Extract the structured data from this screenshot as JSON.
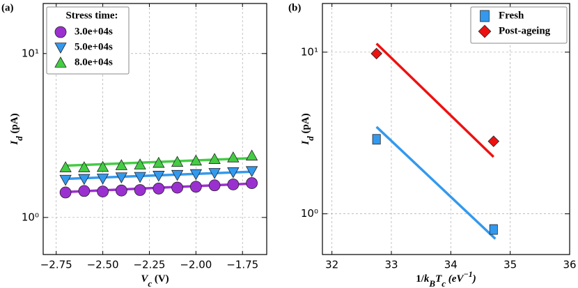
{
  "chart_data": [
    {
      "type": "scatter",
      "panel_label": "(a)",
      "xlabel": [
        {
          "text": "V",
          "italic": true
        },
        {
          "text": "c",
          "italic": true,
          "sub": true
        },
        {
          "text": " (V)"
        }
      ],
      "ylabel": [
        {
          "text": "I",
          "italic": true
        },
        {
          "text": "d",
          "italic": true,
          "sub": true
        },
        {
          "text": " (pA)"
        }
      ],
      "xlim": [
        -2.82,
        -1.62
      ],
      "ylim": [
        0.594,
        20.2
      ],
      "log_y": true,
      "grid": true,
      "xticks": [
        {
          "value": -2.75,
          "label": "−2.75"
        },
        {
          "value": -2.5,
          "label": "−2.50"
        },
        {
          "value": -2.25,
          "label": "−2.25"
        },
        {
          "value": -2.0,
          "label": "−2.00"
        },
        {
          "value": -1.75,
          "label": "−1.75"
        }
      ],
      "yticks": [
        {
          "value": 1,
          "label": "10⁰"
        },
        {
          "value": 10,
          "label": "10¹"
        }
      ],
      "legend_title": "Stress time:",
      "legend": "upper left",
      "series": [
        {
          "name": "3.0e+04s",
          "color": "#9b30d0",
          "marker": "circle",
          "x": [
            -2.7,
            -2.6,
            -2.5,
            -2.4,
            -2.3,
            -2.2,
            -2.1,
            -2.0,
            -1.9,
            -1.8,
            -1.7
          ],
          "values": [
            1.42,
            1.45,
            1.44,
            1.46,
            1.47,
            1.5,
            1.52,
            1.54,
            1.57,
            1.59,
            1.62
          ],
          "fit": {
            "x": [
              -2.7,
              -1.7
            ],
            "values": [
              1.43,
              1.61
            ]
          }
        },
        {
          "name": "5.0e+04s",
          "color": "#3399ee",
          "marker": "triangle-down",
          "x": [
            -2.7,
            -2.6,
            -2.5,
            -2.4,
            -2.3,
            -2.2,
            -2.1,
            -2.0,
            -1.9,
            -1.8,
            -1.7
          ],
          "values": [
            1.7,
            1.72,
            1.73,
            1.76,
            1.77,
            1.8,
            1.82,
            1.84,
            1.87,
            1.89,
            1.92
          ],
          "fit": {
            "x": [
              -2.7,
              -1.7
            ],
            "values": [
              1.72,
              1.9
            ]
          }
        },
        {
          "name": "8.0e+04s",
          "color": "#44cc44",
          "marker": "triangle-up",
          "x": [
            -2.7,
            -2.6,
            -2.5,
            -2.4,
            -2.3,
            -2.2,
            -2.1,
            -2.0,
            -1.9,
            -1.8,
            -1.7
          ],
          "values": [
            2.02,
            2.02,
            2.03,
            2.08,
            2.1,
            2.15,
            2.18,
            2.22,
            2.27,
            2.32,
            2.38
          ],
          "fit": {
            "x": [
              -2.7,
              -1.7
            ],
            "values": [
              2.07,
              2.3
            ]
          }
        }
      ]
    },
    {
      "type": "scatter",
      "panel_label": "(b)",
      "xlabel": [
        {
          "text": "1/"
        },
        {
          "text": "k",
          "italic": true
        },
        {
          "text": "B",
          "italic": true,
          "sub": true
        },
        {
          "text": "T",
          "italic": true
        },
        {
          "text": "c",
          "italic": true,
          "sub": true
        },
        {
          "text": " (eV",
          "italic": true
        },
        {
          "text": "−1",
          "italic": true,
          "sup": true
        },
        {
          "text": ")",
          "italic": true
        }
      ],
      "ylabel": [
        {
          "text": "I",
          "italic": true
        },
        {
          "text": "d",
          "italic": true,
          "sub": true
        },
        {
          "text": " (pA)"
        }
      ],
      "xlim": [
        31.84,
        36
      ],
      "ylim": [
        0.56,
        20
      ],
      "log_y": true,
      "grid": true,
      "xticks": [
        32,
        33,
        34,
        35,
        36
      ],
      "yticks": [
        {
          "value": 1,
          "label": "10⁰"
        },
        {
          "value": 10,
          "label": "10¹"
        }
      ],
      "legend": "upper right",
      "series": [
        {
          "name": "Fresh",
          "color": "#3399ee",
          "marker": "square",
          "x": [
            32.75,
            34.72
          ],
          "values": [
            2.89,
            0.8
          ],
          "fit": {
            "x": [
              32.75,
              34.75
            ],
            "values": [
              3.45,
              0.7
            ]
          }
        },
        {
          "name": "Post-ageing",
          "color": "#ee1111",
          "marker": "diamond",
          "x": [
            32.75,
            34.72
          ],
          "values": [
            9.8,
            2.81
          ],
          "fit": {
            "x": [
              32.75,
              34.72
            ],
            "values": [
              11.3,
              2.25
            ]
          }
        }
      ]
    }
  ]
}
